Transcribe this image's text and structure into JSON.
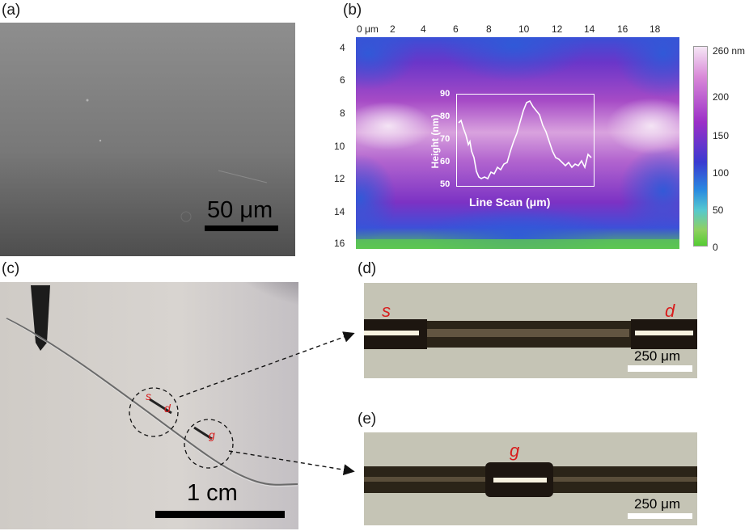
{
  "panels": {
    "a": {
      "label": "(a)",
      "scalebar": "50 μm"
    },
    "b": {
      "label": "(b)",
      "x_ticks": [
        "0 μm",
        "2",
        "4",
        "6",
        "8",
        "10",
        "12",
        "14",
        "16",
        "18"
      ],
      "y_ticks": [
        "4",
        "6",
        "8",
        "10",
        "12",
        "14",
        "16"
      ],
      "colorbar_ticks": [
        "260 nm",
        "200",
        "150",
        "100",
        "50",
        "0"
      ],
      "inset": {
        "ylabel": "Height (nm)",
        "xlabel": "Line Scan (μm)",
        "y_ticks": [
          "90",
          "80",
          "70",
          "60",
          "50"
        ]
      }
    },
    "c": {
      "label": "(c)",
      "scalebar": "1 cm",
      "marks": [
        "s",
        "d",
        "g"
      ]
    },
    "d": {
      "label": "(d)",
      "left_mark": "s",
      "right_mark": "d",
      "scalebar": "250 μm"
    },
    "e": {
      "label": "(e)",
      "center_mark": "g",
      "scalebar": "250 μm"
    }
  },
  "colors": {
    "accent_red": "#d81d1d",
    "colorbar_top": "#f5e6f5",
    "colorbar_mid": "#9b2fc7",
    "colorbar_low": "#2a55e0",
    "colorbar_bottom": "#54cc33"
  }
}
